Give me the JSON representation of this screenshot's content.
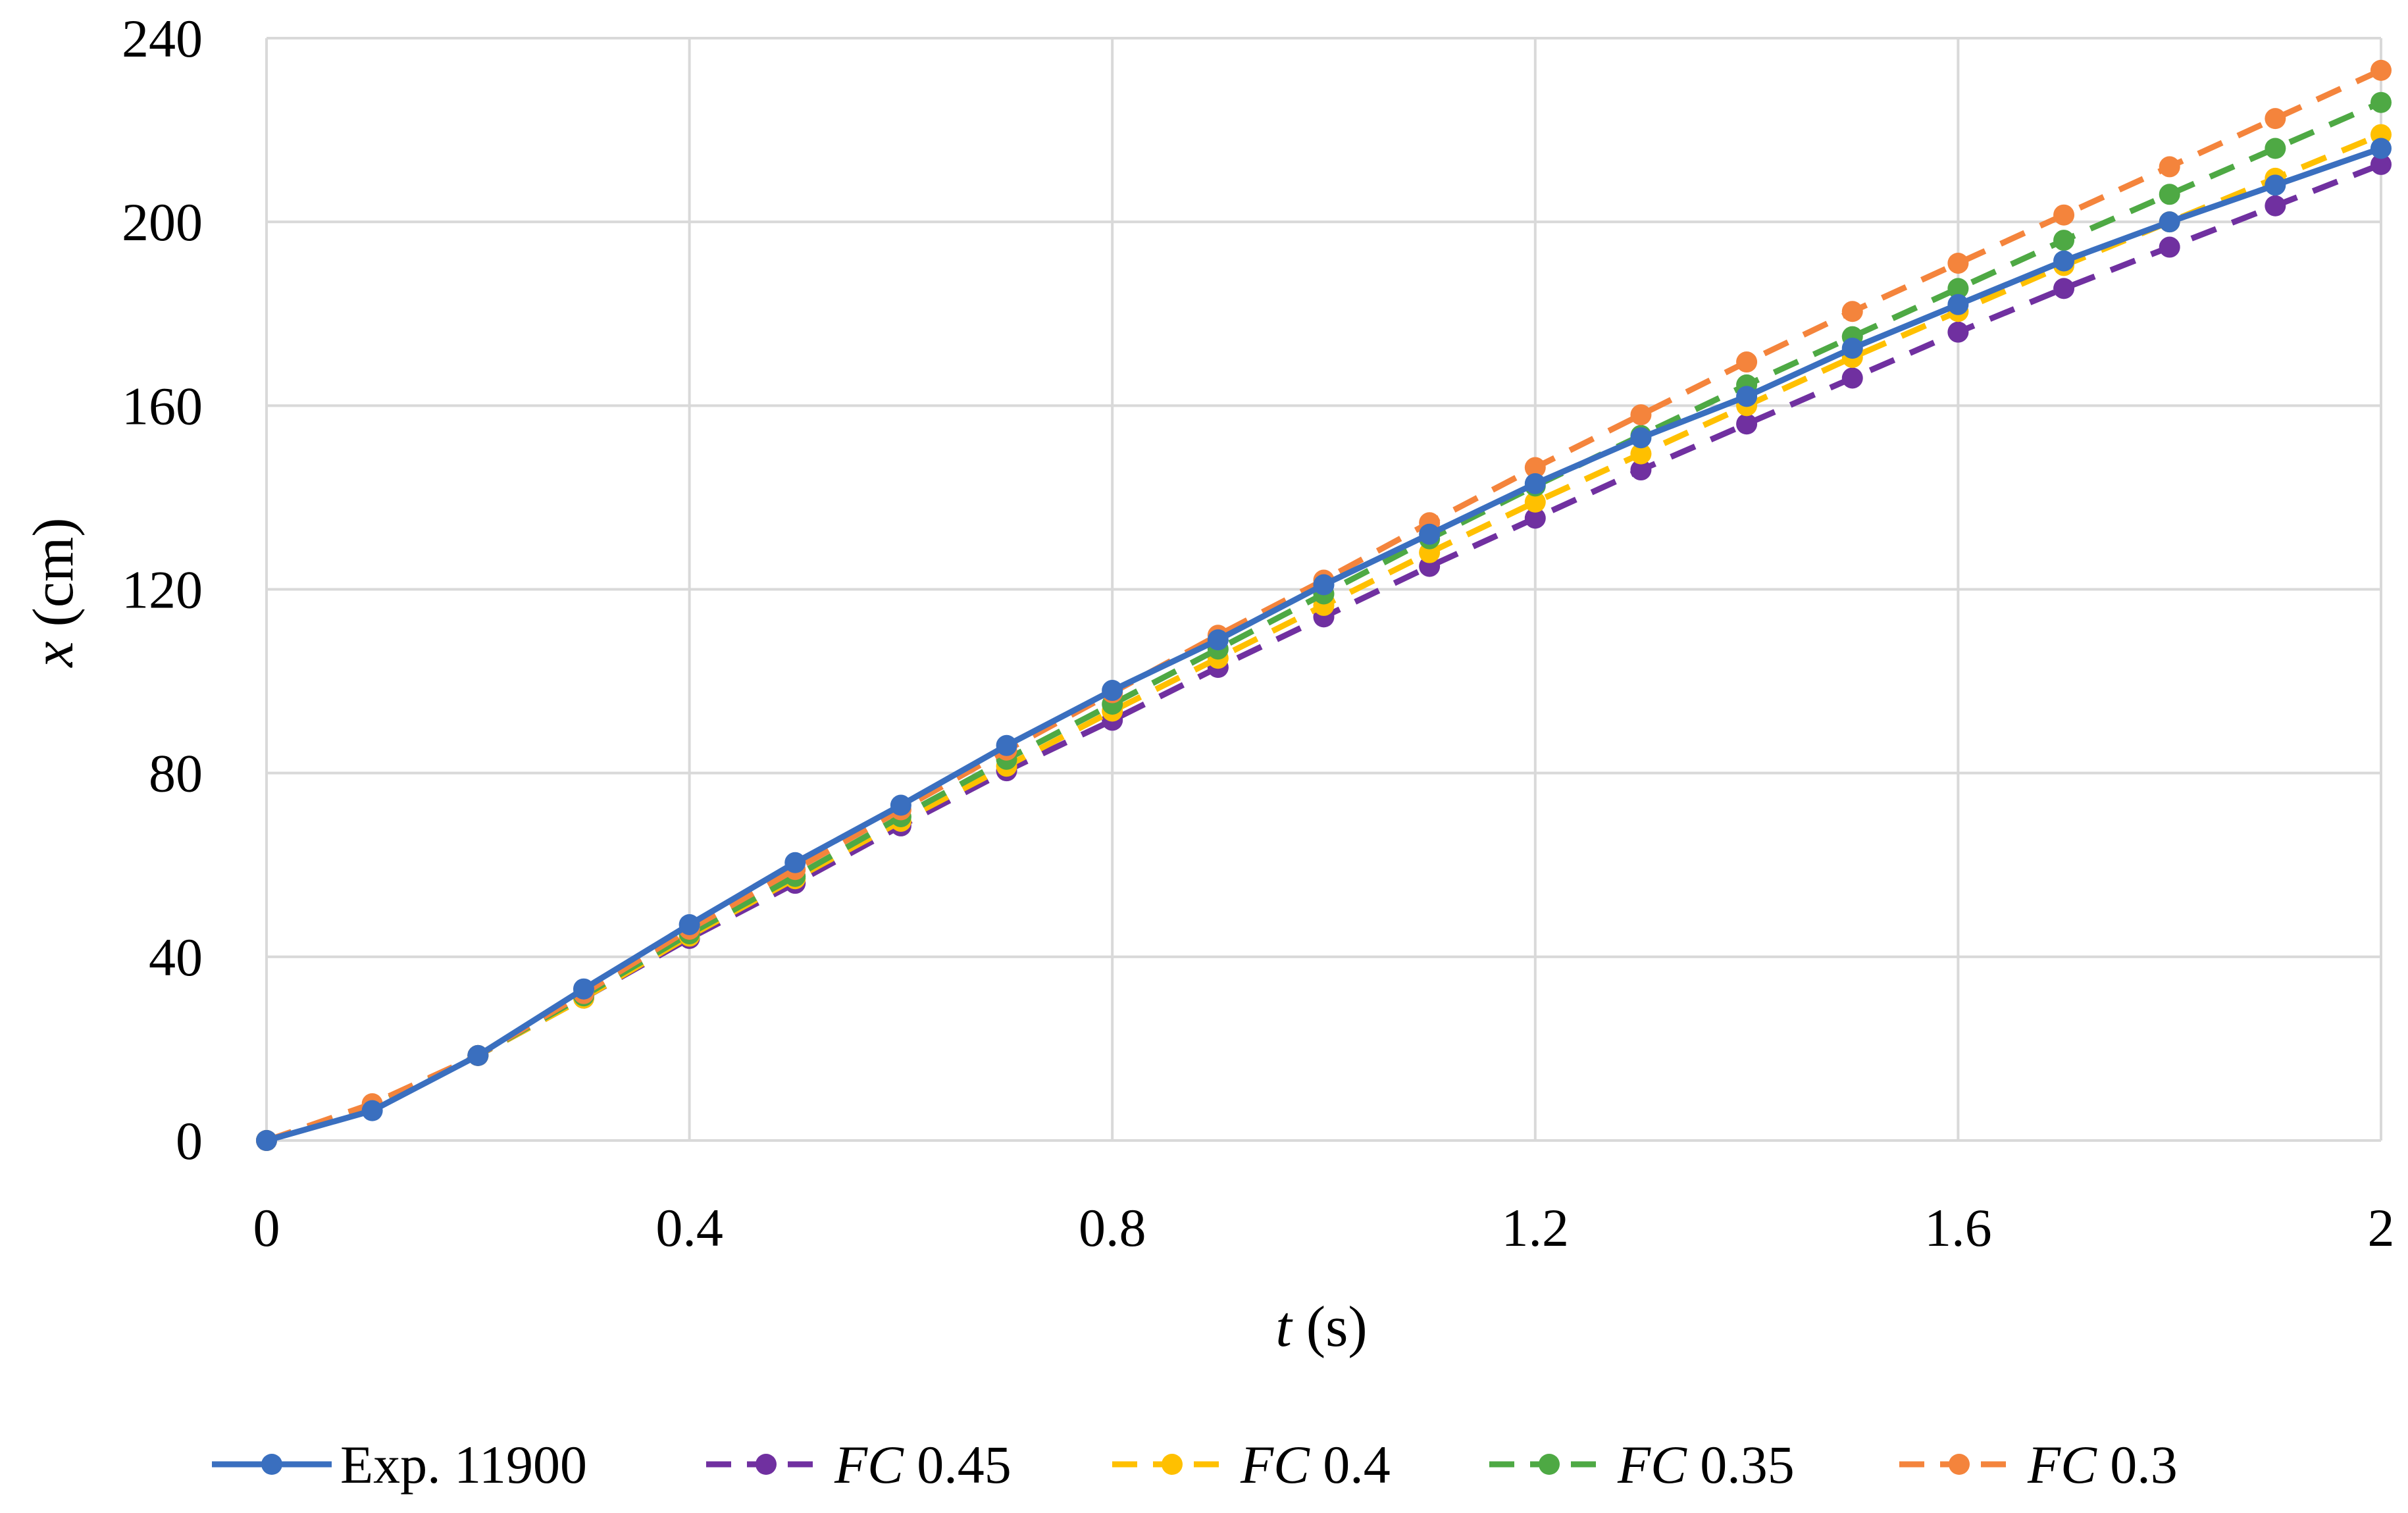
{
  "chart_data": {
    "type": "line",
    "title": "",
    "x": [
      0,
      0.1,
      0.2,
      0.3,
      0.4,
      0.5,
      0.6,
      0.7,
      0.8,
      0.9,
      1.0,
      1.1,
      1.2,
      1.3,
      1.4,
      1.5,
      1.6,
      1.7,
      1.8,
      1.9,
      2.0
    ],
    "xlim": [
      0,
      2
    ],
    "ylim": [
      0,
      240
    ],
    "xticks": [
      0,
      0.4,
      0.8,
      1.2,
      1.6,
      2
    ],
    "xtick_labels": [
      "0",
      "0.4",
      "0.8",
      "1.2",
      "1.6",
      "2"
    ],
    "yticks": [
      0,
      40,
      80,
      120,
      160,
      200,
      240
    ],
    "ytick_labels": [
      "0",
      "40",
      "80",
      "120",
      "160",
      "200",
      "240"
    ],
    "xlabel": {
      "var": "t",
      "unit": " (s)"
    },
    "ylabel": {
      "var": "x",
      "unit": " (cm)"
    },
    "grid": true,
    "legend_position": "bottom",
    "series": [
      {
        "name": "Exp. 11900",
        "prefix": "",
        "suffix": "Exp. 11900",
        "color": "#3a6fbf",
        "dashed": false,
        "values": [
          0,
          6.5,
          18.5,
          33,
          47,
          60.5,
          73,
          86,
          98,
          109,
          121,
          132,
          143,
          153,
          162,
          172.5,
          182,
          191.5,
          200,
          208,
          216
        ]
      },
      {
        "name": "FC 0.45",
        "prefix": "FC",
        "suffix": " 0.45",
        "color": "#7030a0",
        "dashed": true,
        "values": [
          0,
          7.5,
          18.5,
          31,
          44,
          56,
          68.5,
          80.5,
          91.5,
          103,
          114,
          125,
          135.5,
          146,
          156,
          166,
          176,
          185.5,
          194.5,
          203.5,
          212.5
        ]
      },
      {
        "name": "FC 0.4",
        "prefix": "FC",
        "suffix": " 0.4",
        "color": "#ffc000",
        "dashed": true,
        "values": [
          0,
          7.5,
          18.5,
          31,
          44.5,
          57,
          69.5,
          81.5,
          93.5,
          105,
          116.5,
          128,
          139,
          149.5,
          160,
          170.5,
          180.5,
          190.5,
          200,
          209.5,
          219
        ]
      },
      {
        "name": "FC 0.35",
        "prefix": "FC",
        "suffix": " 0.35",
        "color": "#4ea944",
        "dashed": true,
        "values": [
          0,
          7.5,
          18.5,
          31.5,
          45,
          57.5,
          70.5,
          83,
          95,
          107,
          119,
          131,
          142.5,
          153.5,
          164.5,
          175,
          185.5,
          196,
          206,
          216,
          226
        ]
      },
      {
        "name": "FC 0.3",
        "prefix": "FC",
        "suffix": " 0.3",
        "color": "#f4843c",
        "dashed": true,
        "values": [
          0,
          8,
          18.5,
          32,
          46,
          59,
          72,
          85,
          97.5,
          110,
          122,
          134.5,
          146.5,
          158,
          169.5,
          180.5,
          191,
          201.5,
          212,
          222.5,
          233
        ]
      }
    ]
  }
}
